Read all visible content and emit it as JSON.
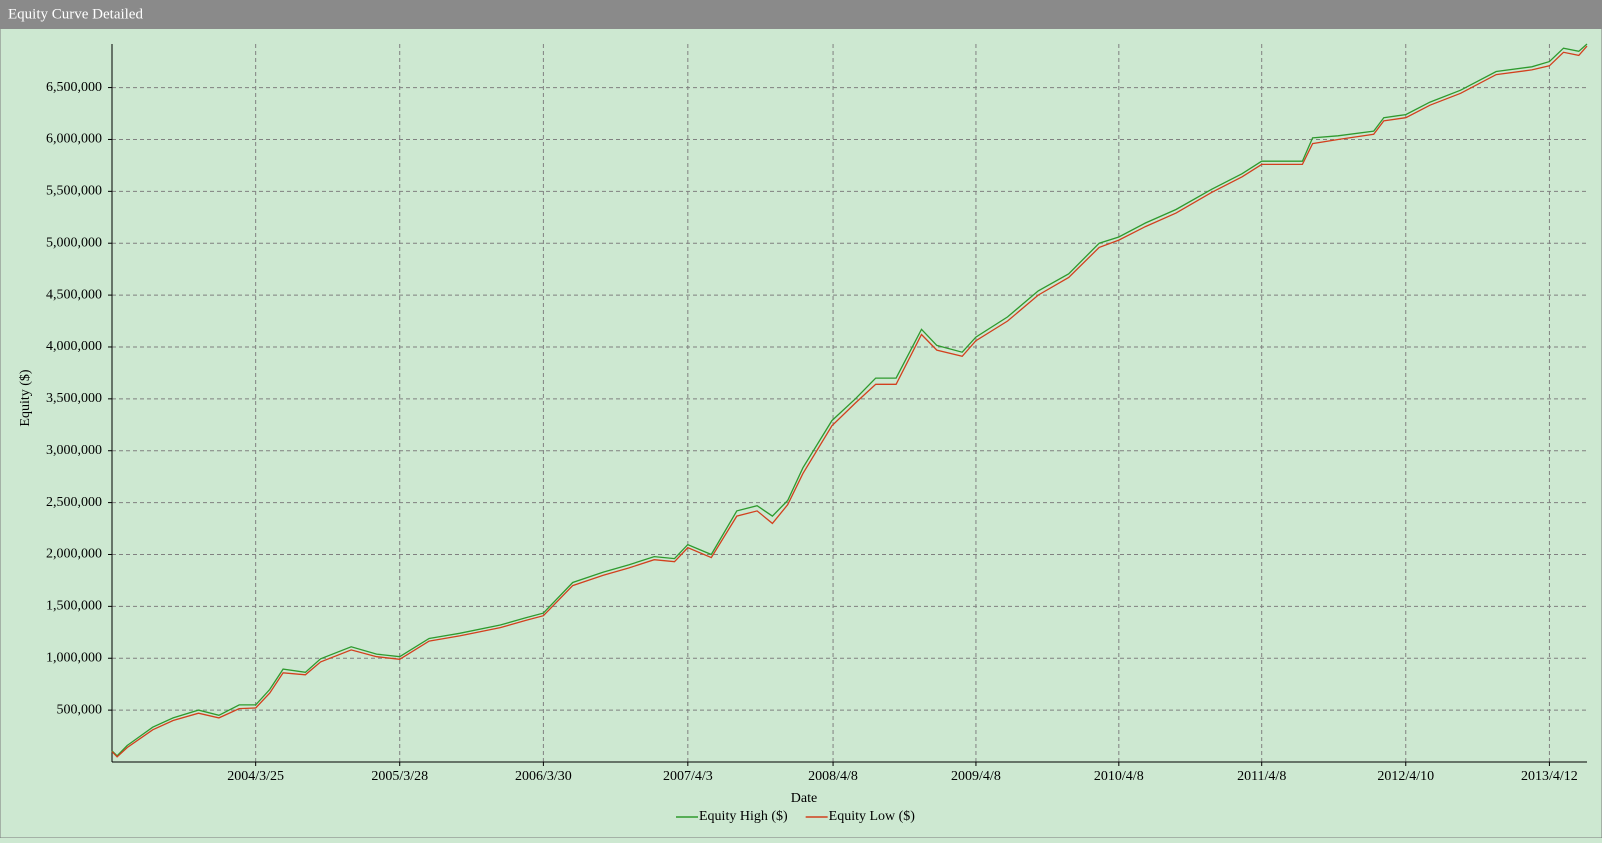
{
  "window_title": "Equity Curve Detailed",
  "chart_data": {
    "type": "line",
    "x_label": "Date",
    "y_label": "Equity ($)",
    "x": [
      "2003/3/24",
      "2003/4/6",
      "2003/5/2",
      "2003/7/6",
      "2003/8/27",
      "2003/10/31",
      "2003/12/22",
      "2004/2/12",
      "2004/3/25",
      "2004/4/30",
      "2004/6/3",
      "2004/7/30",
      "2004/9/7",
      "2004/11/24",
      "2005/1/28",
      "2005/3/28",
      "2005/6/11",
      "2005/8/28",
      "2005/12/10",
      "2006/2/13",
      "2006/3/30",
      "2006/6/13",
      "2006/8/30",
      "2006/11/3",
      "2007/1/7",
      "2007/2/28",
      "2007/4/3",
      "2007/6/2",
      "2007/8/6",
      "2007/9/27",
      "2007/11/5",
      "2007/12/14",
      "2008/1/22",
      "2008/4/5",
      "2008/6/4",
      "2008/7/26",
      "2008/9/16",
      "2008/11/20",
      "2008/12/29",
      "2009/3/4",
      "2009/4/8",
      "2009/6/28",
      "2009/9/14",
      "2009/12/1",
      "2010/2/17",
      "2010/4/8",
      "2010/6/15",
      "2010/9/1",
      "2010/12/1",
      "2011/2/17",
      "2011/4/8",
      "2011/7/21",
      "2011/8/16",
      "2011/10/20",
      "2012/1/19",
      "2012/2/14",
      "2012/4/10",
      "2012/6/11",
      "2012/8/28",
      "2012/11/27",
      "2013/2/26",
      "2013/4/12",
      "2013/5/18",
      "2013/6/26",
      "2013/7/17"
    ],
    "series": [
      {
        "name": "Equity High ($)",
        "color": "#2e9a2e",
        "values": [
          108000,
          60000,
          160000,
          335000,
          425000,
          500000,
          450000,
          550000,
          550000,
          700000,
          895000,
          865000,
          995000,
          1110000,
          1040000,
          1015000,
          1190000,
          1240000,
          1320000,
          1390000,
          1435000,
          1730000,
          1830000,
          1900000,
          1980000,
          1960000,
          2095000,
          2000000,
          2420000,
          2470000,
          2370000,
          2520000,
          2835000,
          3290000,
          3500000,
          3700000,
          3700000,
          4170000,
          4015000,
          3950000,
          4095000,
          4290000,
          4540000,
          4705000,
          5000000,
          5060000,
          5195000,
          5325000,
          5520000,
          5670000,
          5790000,
          5790000,
          6015000,
          6035000,
          6080000,
          6210000,
          6240000,
          6360000,
          6475000,
          6655000,
          6700000,
          6750000,
          6880000,
          6850000,
          6920000
        ]
      },
      {
        "name": "Equity Low ($)",
        "color": "#d2401e",
        "values": [
          100000,
          50000,
          140000,
          310000,
          400000,
          470000,
          425000,
          515000,
          520000,
          665000,
          860000,
          840000,
          965000,
          1080000,
          1015000,
          990000,
          1165000,
          1215000,
          1295000,
          1365000,
          1410000,
          1700000,
          1800000,
          1870000,
          1950000,
          1930000,
          2065000,
          1970000,
          2370000,
          2420000,
          2300000,
          2480000,
          2780000,
          3240000,
          3460000,
          3640000,
          3640000,
          4120000,
          3970000,
          3910000,
          4060000,
          4250000,
          4500000,
          4670000,
          4960000,
          5030000,
          5160000,
          5290000,
          5490000,
          5640000,
          5760000,
          5760000,
          5960000,
          6000000,
          6050000,
          6180000,
          6210000,
          6330000,
          6445000,
          6625000,
          6670000,
          6710000,
          6840000,
          6810000,
          6900000
        ]
      }
    ],
    "xlim": [
      "2003/3/24",
      "2013/7/17"
    ],
    "xticks": [
      "2004/3/25",
      "2005/3/28",
      "2006/3/30",
      "2007/4/3",
      "2008/4/8",
      "2009/4/8",
      "2010/4/8",
      "2011/4/8",
      "2012/4/10",
      "2013/4/12"
    ],
    "ylim": [
      0,
      6920000
    ],
    "yticks": [
      {
        "value": 500000,
        "label": "500,000"
      },
      {
        "value": 1000000,
        "label": "1,000,000"
      },
      {
        "value": 1500000,
        "label": "1,500,000"
      },
      {
        "value": 2000000,
        "label": "2,000,000"
      },
      {
        "value": 2500000,
        "label": "2,500,000"
      },
      {
        "value": 3000000,
        "label": "3,000,000"
      },
      {
        "value": 3500000,
        "label": "3,500,000"
      },
      {
        "value": 4000000,
        "label": "4,000,000"
      },
      {
        "value": 4500000,
        "label": "4,500,000"
      },
      {
        "value": 5000000,
        "label": "5,000,000"
      },
      {
        "value": 5500000,
        "label": "5,500,000"
      },
      {
        "value": 6000000,
        "label": "6,000,000"
      },
      {
        "value": 6500000,
        "label": "6,500,000"
      }
    ],
    "grid": true
  }
}
